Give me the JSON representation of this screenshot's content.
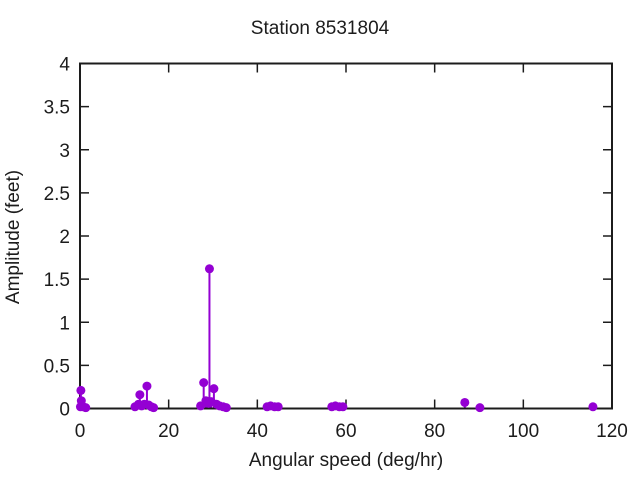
{
  "figure": {
    "title": "Station 8531804",
    "xlabel": "Angular speed (deg/hr)",
    "ylabel": "Amplitude (feet)"
  },
  "chart_data": {
    "type": "scatter",
    "style": "impulses-with-points (stem plot, gnuplot style)",
    "title": "Station 8531804",
    "xlabel": "Angular speed (deg/hr)",
    "ylabel": "Amplitude (feet)",
    "xlim": [
      0,
      120
    ],
    "ylim": [
      0,
      4
    ],
    "xticks": [
      0,
      20,
      40,
      60,
      80,
      100,
      120
    ],
    "yticks": [
      0,
      0.5,
      1,
      1.5,
      2,
      2.5,
      3,
      3.5,
      4
    ],
    "ytick_labels": [
      "0",
      "0.5",
      "1",
      "1.5",
      "2",
      "2.5",
      "3",
      "3.5",
      "4"
    ],
    "grid": false,
    "legend": false,
    "frame_mirrored_ticks": true,
    "point_color": "#9400d3",
    "axis_color": "#1c1c1c",
    "points": [
      [
        0.1,
        0.02
      ],
      [
        0.2,
        0.21
      ],
      [
        0.3,
        0.09
      ],
      [
        0.7,
        0.02
      ],
      [
        1.3,
        0.01
      ],
      [
        12.4,
        0.02
      ],
      [
        13.2,
        0.05
      ],
      [
        13.5,
        0.16
      ],
      [
        13.9,
        0.03
      ],
      [
        14.5,
        0.05
      ],
      [
        15.1,
        0.26
      ],
      [
        15.5,
        0.04
      ],
      [
        16.1,
        0.02
      ],
      [
        16.6,
        0.01
      ],
      [
        27.2,
        0.03
      ],
      [
        27.9,
        0.3
      ],
      [
        28.4,
        0.09
      ],
      [
        29.0,
        0.06
      ],
      [
        29.2,
        1.62
      ],
      [
        29.6,
        0.08
      ],
      [
        30.2,
        0.23
      ],
      [
        30.8,
        0.05
      ],
      [
        31.5,
        0.03
      ],
      [
        32.3,
        0.02
      ],
      [
        33.0,
        0.01
      ],
      [
        42.2,
        0.02
      ],
      [
        43.0,
        0.03
      ],
      [
        43.9,
        0.02
      ],
      [
        44.7,
        0.02
      ],
      [
        56.8,
        0.02
      ],
      [
        57.6,
        0.03
      ],
      [
        58.5,
        0.02
      ],
      [
        59.3,
        0.02
      ],
      [
        86.8,
        0.07
      ],
      [
        90.2,
        0.01
      ],
      [
        115.7,
        0.02
      ]
    ]
  }
}
